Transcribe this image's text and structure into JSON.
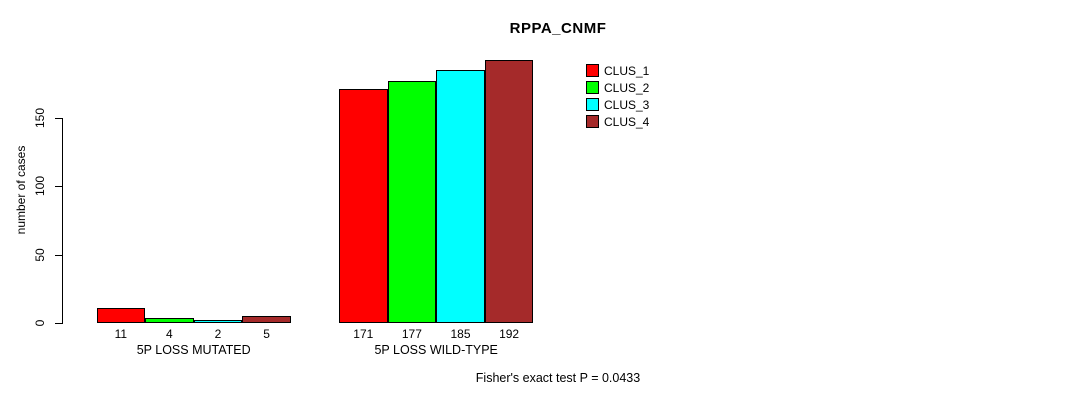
{
  "chart_data": {
    "type": "bar",
    "title": "RPPA_CNMF",
    "ylabel": "number of cases",
    "xlabel": "",
    "yticks": [
      0,
      50,
      100,
      150
    ],
    "ylim": [
      0,
      200
    ],
    "grid": false,
    "background_color": "#ffffff",
    "bar_border_color": "#000000",
    "categories": [
      "5P LOSS MUTATED",
      "5P LOSS WILD-TYPE"
    ],
    "series": [
      {
        "name": "CLUS_1",
        "color": "#ff0000",
        "values": [
          11,
          171
        ]
      },
      {
        "name": "CLUS_2",
        "color": "#00ff00",
        "values": [
          4,
          177
        ]
      },
      {
        "name": "CLUS_3",
        "color": "#00ffff",
        "values": [
          2,
          185
        ]
      },
      {
        "name": "CLUS_4",
        "color": "#a52a2a",
        "values": [
          5,
          192
        ]
      }
    ],
    "bar_value_labels": [
      [
        "11",
        "4",
        "2",
        "5"
      ],
      [
        "171",
        "177",
        "185",
        "192"
      ]
    ],
    "legend_position": "right",
    "legend_entries": [
      "CLUS_1",
      "CLUS_2",
      "CLUS_3",
      "CLUS_4"
    ],
    "annotation": "Fisher's exact test P = 0.0433"
  }
}
